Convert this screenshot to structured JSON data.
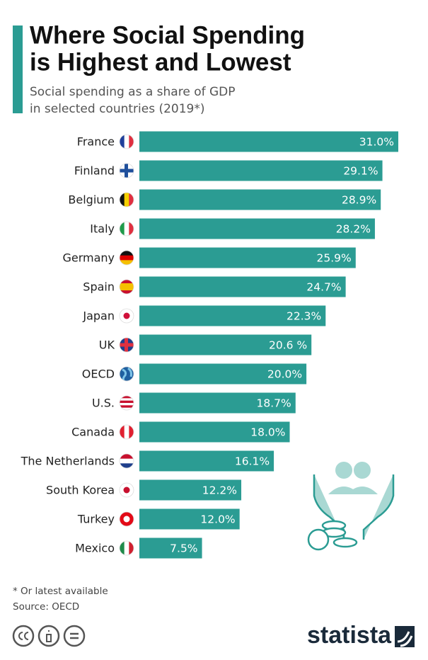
{
  "chart_data": {
    "type": "bar",
    "orientation": "horizontal",
    "title_lines": [
      "Where Social Spending",
      "is Highest and Lowest"
    ],
    "subtitle_lines": [
      "Social spending as a share of GDP",
      "in selected countries (2019*)"
    ],
    "categories": [
      "France",
      "Finland",
      "Belgium",
      "Italy",
      "Germany",
      "Spain",
      "Japan",
      "UK",
      "OECD",
      "U.S.",
      "Canada",
      "The Netherlands",
      "South Korea",
      "Turkey",
      "Mexico"
    ],
    "values": [
      31.0,
      29.1,
      28.9,
      28.2,
      25.9,
      24.7,
      22.3,
      20.6,
      20.0,
      18.7,
      18.0,
      16.1,
      12.2,
      12.0,
      7.5
    ],
    "value_labels": [
      "31.0%",
      "29.1%",
      "28.9%",
      "28.2%",
      "25.9%",
      "24.7%",
      "22.3%",
      "20.6 %",
      "20.0%",
      "18.7%",
      "18.0%",
      "16.1%",
      "12.2%",
      "12.0%",
      "7.5%"
    ],
    "color": "#2b9c93",
    "notes": [
      "* Or latest available",
      "Source: OECD"
    ],
    "brand": "statista"
  }
}
